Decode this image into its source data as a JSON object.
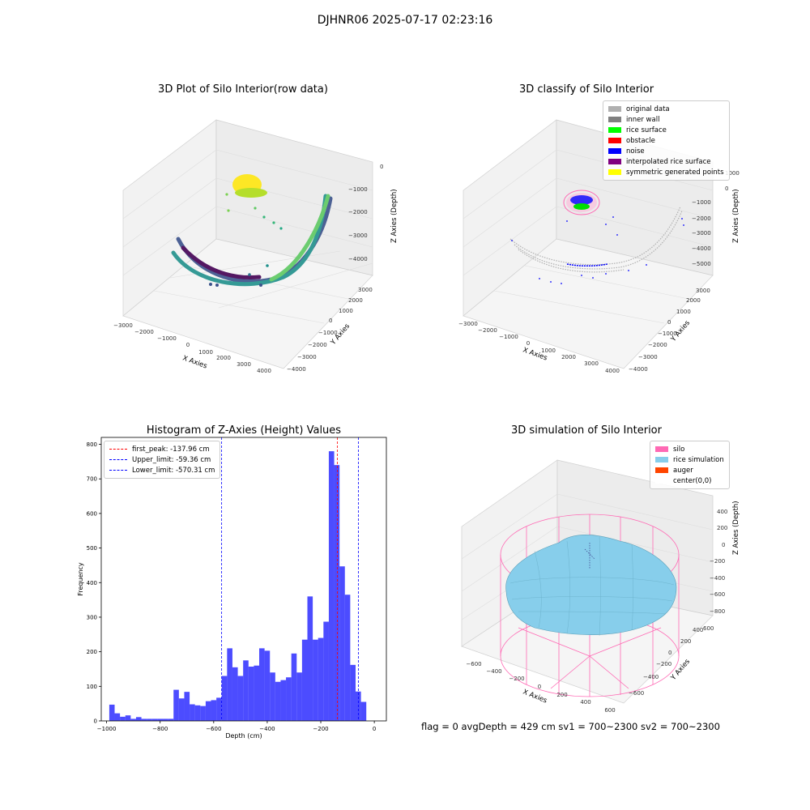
{
  "figure": {
    "suptitle": "DJHNR06 2025-07-17 02:23:16",
    "status_line": "flag = 0     avgDepth = 429 cm  sv1 = 700~2300  sv2 = 700~2300"
  },
  "panels": {
    "raw": {
      "title": "3D Plot of Silo Interior(row data)",
      "x_ticks": [
        "−3000",
        "−2000",
        "−1000",
        "0",
        "1000",
        "2000",
        "3000",
        "4000"
      ],
      "y_ticks": [
        "−4000",
        "−3000",
        "−2000",
        "−1000",
        "0",
        "1000",
        "2000",
        "3000"
      ],
      "z_ticks": [
        "−4000",
        "−3000",
        "−2000",
        "−1000",
        "0"
      ],
      "xlabel": "X Axies",
      "ylabel": "Y Axies",
      "zlabel": "Z Axies (Depth)"
    },
    "classify": {
      "title": "3D classify of Silo Interior",
      "x_ticks": [
        "−3000",
        "−2000",
        "−1000",
        "0",
        "1000",
        "2000",
        "3000",
        "4000"
      ],
      "y_ticks": [
        "−4000",
        "−3000",
        "−2000",
        "−1000",
        "0",
        "1000",
        "2000",
        "3000"
      ],
      "z_ticks": [
        "−5000",
        "−4000",
        "−3000",
        "−2000",
        "−1000",
        "0",
        "1000"
      ],
      "xlabel": "X Axies",
      "ylabel": "Y Axies",
      "zlabel": "Z Axies (Depth)",
      "legend": [
        {
          "label": "original data",
          "color": "#b0b0b0"
        },
        {
          "label": "inner wall",
          "color": "#808080"
        },
        {
          "label": "rice surface",
          "color": "#00ff00"
        },
        {
          "label": "obstacle",
          "color": "#ff0000"
        },
        {
          "label": "noise",
          "color": "#0000ff"
        },
        {
          "label": "interpolated rice surface",
          "color": "#800080"
        },
        {
          "label": "symmetric generated points",
          "color": "#ffff00"
        }
      ]
    },
    "simulation": {
      "title": "3D simulation of Silo Interior",
      "x_ticks": [
        "−600",
        "−400",
        "−200",
        "0",
        "200",
        "400",
        "600"
      ],
      "y_ticks": [
        "−600",
        "−400",
        "−200",
        "0",
        "200",
        "400",
        "600"
      ],
      "z_ticks": [
        "−800",
        "−600",
        "−400",
        "−200",
        "0",
        "200",
        "400"
      ],
      "xlabel": "X Axies",
      "ylabel": "Y Axies",
      "zlabel": "Z Axies (Depth)",
      "legend": [
        {
          "label": "silo",
          "color": "#ff69b4"
        },
        {
          "label": "rice simulation",
          "color": "#87ceeb"
        },
        {
          "label": "auger",
          "color": "#ff4500"
        },
        {
          "label": "center(0,0)",
          "color": "#ffffff"
        }
      ]
    }
  },
  "chart_data": [
    {
      "type": "bar",
      "title": "Histogram of Z-Axies (Height) Values",
      "xlabel": "Depth (cm)",
      "ylabel": "Frequency",
      "xlim": [
        -1020,
        45
      ],
      "ylim": [
        0,
        820
      ],
      "x_ticks": [
        -1000,
        -800,
        -600,
        -400,
        -200,
        0
      ],
      "y_ticks": [
        0,
        100,
        200,
        300,
        400,
        500,
        600,
        700,
        800
      ],
      "x_tick_labels": [
        "−1000",
        "−800",
        "−600",
        "−400",
        "−200",
        "0"
      ],
      "y_tick_labels": [
        "0",
        "100",
        "200",
        "300",
        "400",
        "500",
        "600",
        "700",
        "800"
      ],
      "bar_color": "#0000ff",
      "bin_edges": [
        -990,
        -970,
        -950,
        -930,
        -910,
        -890,
        -870,
        -850,
        -830,
        -810,
        -790,
        -770,
        -750,
        -730,
        -710,
        -690,
        -670,
        -650,
        -630,
        -610,
        -590,
        -570,
        -550,
        -530,
        -510,
        -490,
        -470,
        -450,
        -430,
        -410,
        -390,
        -370,
        -350,
        -330,
        -310,
        -290,
        -270,
        -250,
        -230,
        -210,
        -190,
        -170,
        -150,
        -130,
        -110,
        -90,
        -70,
        -50,
        -30,
        -10,
        10
      ],
      "values": [
        47,
        22,
        12,
        16,
        6,
        11,
        6,
        6,
        6,
        6,
        6,
        6,
        90,
        65,
        84,
        48,
        45,
        43,
        57,
        60,
        67,
        130,
        210,
        155,
        130,
        175,
        157,
        160,
        210,
        203,
        140,
        113,
        118,
        126,
        195,
        140,
        235,
        360,
        235,
        240,
        287,
        780,
        740,
        447,
        365,
        162,
        85,
        55,
        0,
        0
      ],
      "vlines": [
        {
          "x": -137.96,
          "label": "first_peak: -137.96 cm",
          "color": "#ff0000"
        },
        {
          "x": -59.36,
          "label": "Upper_limit: -59.36 cm",
          "color": "#0000ff"
        },
        {
          "x": -570.31,
          "label": "Lower_limit: -570.31 cm",
          "color": "#0000ff"
        }
      ],
      "legend_position": "top-left"
    }
  ]
}
